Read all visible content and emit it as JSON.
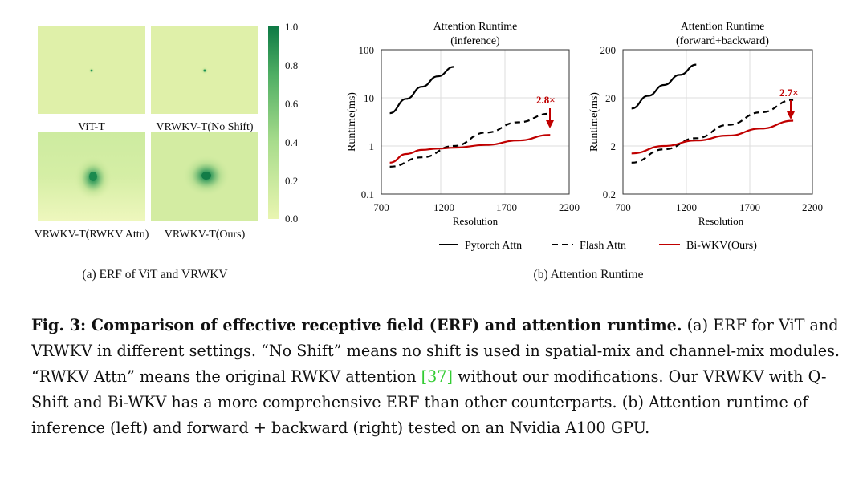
{
  "erf": {
    "panels": [
      {
        "label": "ViT-T",
        "spread": 0.0
      },
      {
        "label": "VRWKV-T(No Shift)",
        "spread": 0.05
      },
      {
        "label": "VRWKV-T(RWKV Attn)",
        "spread": 0.75
      },
      {
        "label": "VRWKV-T(Ours)",
        "spread": 1.0
      }
    ],
    "colorbar_ticks": [
      "1.0",
      "0.8",
      "0.6",
      "0.4",
      "0.2",
      "0.0"
    ],
    "colors": {
      "low": "#e9f5b0",
      "high": "#0e7a45"
    },
    "subcaption": "(a) ERF of ViT and VRWKV"
  },
  "chart_data": [
    {
      "type": "line",
      "title": [
        "Attention Runtime",
        "(inference)"
      ],
      "xlabel": "Resolution",
      "ylabel": "Runtime(ms)",
      "xlim": [
        700,
        2200
      ],
      "ylim": [
        0.1,
        100
      ],
      "yscale": "log",
      "xticks": [
        "700",
        "1200",
        "1700",
        "2200"
      ],
      "yticks": [
        "100",
        "10",
        "1",
        "0.1"
      ],
      "grid": true,
      "annotation": {
        "text": "2.8×",
        "x": 2040,
        "from": 4.7,
        "to": 1.7
      },
      "series": [
        {
          "name": "Pytorch Attn",
          "color": "#000000",
          "dash": "solid",
          "x": [
            768,
            900,
            1024,
            1150,
            1280
          ],
          "y": [
            4.8,
            9.5,
            17.0,
            28.0,
            44.0
          ]
        },
        {
          "name": "Flash Attn",
          "color": "#000000",
          "dash": "dashed",
          "x": [
            768,
            1024,
            1280,
            1536,
            1792,
            2048
          ],
          "y": [
            0.37,
            0.58,
            1.0,
            1.9,
            3.1,
            4.7
          ]
        },
        {
          "name": "Bi-WKV(Ours)",
          "color": "#c00000",
          "dash": "solid",
          "x": [
            768,
            900,
            1024,
            1150,
            1280,
            1536,
            1792,
            2048
          ],
          "y": [
            0.45,
            0.68,
            0.83,
            0.88,
            0.92,
            1.05,
            1.3,
            1.7
          ]
        }
      ]
    },
    {
      "type": "line",
      "title": [
        "Attention Runtime",
        "(forward+backward)"
      ],
      "xlabel": "Resolution",
      "ylabel": "Runtime(ms)",
      "xlim": [
        700,
        2200
      ],
      "ylim": [
        0.2,
        200
      ],
      "yscale": "log",
      "xticks": [
        "700",
        "1200",
        "1700",
        "2200"
      ],
      "yticks": [
        "200",
        "20",
        "2",
        "0.2"
      ],
      "grid": true,
      "annotation": {
        "text": "2.7×",
        "x": 2040,
        "from": 18.0,
        "to": 6.7
      },
      "series": [
        {
          "name": "Pytorch Attn",
          "color": "#000000",
          "dash": "solid",
          "x": [
            768,
            900,
            1024,
            1150,
            1280
          ],
          "y": [
            12.0,
            22.0,
            37.0,
            60.0,
            98.0
          ]
        },
        {
          "name": "Flash Attn",
          "color": "#000000",
          "dash": "dashed",
          "x": [
            768,
            1024,
            1280,
            1536,
            1792,
            2048
          ],
          "y": [
            0.9,
            1.7,
            2.9,
            5.5,
            10.0,
            18.0
          ]
        },
        {
          "name": "Bi-WKV(Ours)",
          "color": "#c00000",
          "dash": "solid",
          "x": [
            768,
            1024,
            1280,
            1536,
            1792,
            2048
          ],
          "y": [
            1.4,
            2.0,
            2.6,
            3.3,
            4.6,
            6.7
          ]
        }
      ]
    }
  ],
  "legend": [
    {
      "label": "Pytorch Attn",
      "color": "#000000",
      "dash": "solid"
    },
    {
      "label": "Flash Attn",
      "color": "#000000",
      "dash": "dashed"
    },
    {
      "label": "Bi-WKV(Ours)",
      "color": "#c00000",
      "dash": "solid"
    }
  ],
  "subcaption_b": "(b) Attention Runtime",
  "caption": {
    "head": "Fig. 3: Comparison of effective receptive field (ERF) and attention runtime.",
    "body1": " (a) ERF for ViT and VRWKV in different settings. “No Shift” means no shift is used in spatial-mix and channel-mix modules. “RWKV Attn” means the original RWKV attention ",
    "cite": "[37]",
    "body2": " without our modifications. Our VRWKV with Q-Shift and Bi-WKV has a more comprehensive ERF than other counterparts. (b) Attention runtime of inference (left) and forward + backward (right) tested on an Nvidia A100 GPU."
  }
}
